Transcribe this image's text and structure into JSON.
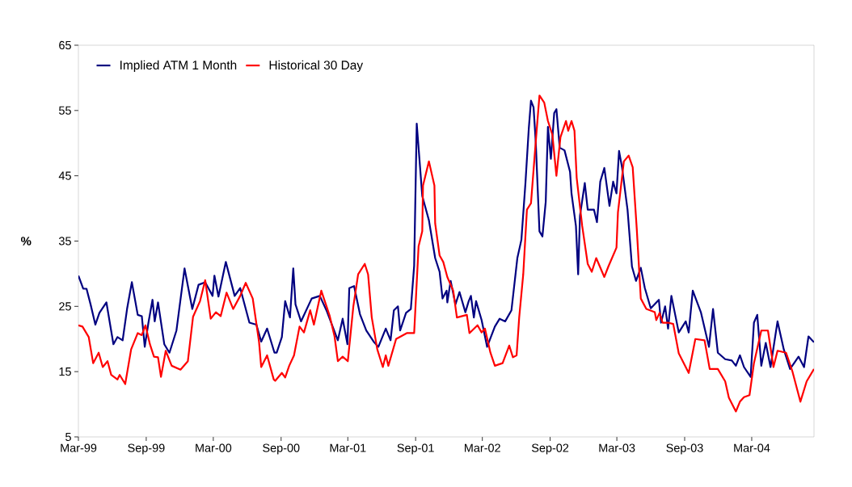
{
  "chart_data": {
    "type": "line",
    "ylabel": "%",
    "xlim": [
      "1999-03-01",
      "2004-08-17"
    ],
    "ylim": [
      5,
      65
    ],
    "xticks": [
      {
        "value": "1999-03-01",
        "label": "Mar-99"
      },
      {
        "value": "1999-09-01",
        "label": "Sep-99"
      },
      {
        "value": "2000-03-01",
        "label": "Mar-00"
      },
      {
        "value": "2000-09-01",
        "label": "Sep-00"
      },
      {
        "value": "2001-03-01",
        "label": "Mar-01"
      },
      {
        "value": "2001-09-01",
        "label": "Sep-01"
      },
      {
        "value": "2002-03-01",
        "label": "Mar-02"
      },
      {
        "value": "2002-09-01",
        "label": "Sep-02"
      },
      {
        "value": "2003-03-01",
        "label": "Mar-03"
      },
      {
        "value": "2003-09-01",
        "label": "Sep-03"
      },
      {
        "value": "2004-03-01",
        "label": "Mar-04"
      }
    ],
    "yticks": [
      5,
      15,
      25,
      35,
      45,
      55,
      65
    ],
    "grid": false,
    "legend": "top left",
    "marker": "none",
    "line_style": "solid",
    "series": [
      {
        "name": "Implied ATM 1 Month",
        "color": "#000080",
        "x": [
          "1999-03-01",
          "1999-03-14",
          "1999-03-23",
          "1999-04-03",
          "1999-04-16",
          "1999-04-27",
          "1999-05-16",
          "1999-06-04",
          "1999-06-15",
          "1999-06-29",
          "1999-07-11",
          "1999-07-24",
          "1999-08-09",
          "1999-08-20",
          "1999-08-28",
          "1999-09-07",
          "1999-09-18",
          "1999-09-24",
          "1999-10-03",
          "1999-10-20",
          "1999-11-03",
          "1999-11-22",
          "1999-12-14",
          "2000-01-04",
          "2000-01-21",
          "2000-02-08",
          "2000-02-28",
          "2000-03-04",
          "2000-03-15",
          "2000-04-04",
          "2000-04-28",
          "2000-05-13",
          "2000-06-07",
          "2000-06-26",
          "2000-07-09",
          "2000-07-25",
          "2000-08-14",
          "2000-08-20",
          "2000-09-03",
          "2000-09-12",
          "2000-09-25",
          "2000-10-04",
          "2000-10-10",
          "2000-10-25",
          "2000-11-23",
          "2000-12-15",
          "2001-01-02",
          "2001-02-02",
          "2001-02-15",
          "2001-02-28",
          "2001-03-05",
          "2001-03-18",
          "2001-04-03",
          "2001-04-20",
          "2001-05-10",
          "2001-05-23",
          "2001-06-12",
          "2001-06-25",
          "2001-07-04",
          "2001-07-15",
          "2001-07-21",
          "2001-08-06",
          "2001-08-19",
          "2001-08-28",
          "2001-09-04",
          "2001-09-19",
          "2001-10-07",
          "2001-10-24",
          "2001-11-05",
          "2001-11-13",
          "2001-11-24",
          "2001-11-26",
          "2001-12-05",
          "2001-12-18",
          "2001-12-29",
          "2002-01-14",
          "2002-01-23",
          "2002-01-29",
          "2002-02-06",
          "2002-02-12",
          "2002-02-27",
          "2002-03-14",
          "2002-04-04",
          "2002-04-17",
          "2002-05-02",
          "2002-05-19",
          "2002-06-04",
          "2002-06-15",
          "2002-06-26",
          "2002-07-05",
          "2002-07-11",
          "2002-07-18",
          "2002-07-24",
          "2002-08-03",
          "2002-08-11",
          "2002-08-20",
          "2002-08-26",
          "2002-09-03",
          "2002-09-12",
          "2002-09-18",
          "2002-09-27",
          "2002-10-10",
          "2002-10-25",
          "2002-10-29",
          "2002-11-10",
          "2002-11-16",
          "2002-11-21",
          "2002-12-04",
          "2002-12-12",
          "2002-12-29",
          "2003-01-06",
          "2003-01-15",
          "2003-01-26",
          "2003-02-09",
          "2003-02-19",
          "2003-02-28",
          "2003-03-07",
          "2003-03-15",
          "2003-03-30",
          "2003-04-11",
          "2003-04-22",
          "2003-05-05",
          "2003-05-16",
          "2003-06-01",
          "2003-06-23",
          "2003-06-29",
          "2003-07-10",
          "2003-07-18",
          "2003-07-27",
          "2003-08-16",
          "2003-09-04",
          "2003-09-12",
          "2003-09-23",
          "2003-10-15",
          "2003-11-06",
          "2003-11-17",
          "2003-11-30",
          "2003-12-20",
          "2004-01-07",
          "2004-01-18",
          "2004-01-29",
          "2004-02-09",
          "2004-02-27",
          "2004-03-07",
          "2004-03-16",
          "2004-03-27",
          "2004-04-08",
          "2004-04-21",
          "2004-05-10",
          "2004-05-27",
          "2004-06-13",
          "2004-07-06",
          "2004-07-21",
          "2004-08-02",
          "2004-08-17"
        ],
        "values": [
          29.7,
          27.7,
          27.7,
          25.3,
          22.2,
          24.0,
          25.6,
          19.2,
          20.3,
          19.8,
          24.6,
          28.7,
          23.7,
          23.5,
          18.8,
          22.5,
          26.0,
          22.7,
          25.6,
          19.2,
          17.9,
          21.3,
          30.8,
          24.6,
          28.3,
          28.7,
          26.6,
          29.7,
          26.5,
          31.8,
          26.6,
          27.8,
          22.5,
          22.2,
          19.6,
          21.6,
          17.9,
          17.9,
          20.3,
          25.8,
          23.3,
          30.8,
          25.3,
          22.7,
          26.2,
          26.6,
          24.4,
          19.8,
          23.1,
          19.2,
          27.8,
          28.1,
          23.8,
          21.3,
          19.6,
          18.8,
          21.6,
          19.8,
          24.4,
          25.0,
          21.3,
          24.0,
          24.6,
          31.2,
          53.0,
          41.9,
          38.2,
          32.4,
          30.3,
          26.2,
          27.4,
          25.6,
          28.9,
          25.3,
          27.2,
          24.1,
          25.8,
          26.6,
          23.3,
          25.8,
          22.9,
          18.8,
          21.9,
          23.1,
          22.7,
          24.4,
          32.4,
          35.2,
          43.9,
          52.2,
          56.5,
          55.5,
          50.1,
          36.5,
          35.7,
          41.0,
          52.5,
          47.6,
          54.6,
          55.2,
          49.3,
          48.9,
          45.6,
          42.3,
          37.3,
          29.9,
          38.9,
          43.9,
          39.8,
          39.8,
          37.9,
          44.1,
          46.2,
          40.4,
          44.1,
          42.3,
          48.8,
          46.3,
          39.8,
          31.1,
          28.9,
          30.9,
          27.8,
          24.7,
          26.0,
          22.5,
          25.0,
          21.6,
          26.6,
          21.0,
          22.7,
          21.0,
          27.4,
          24.1,
          18.8,
          24.6,
          17.9,
          16.9,
          16.7,
          15.9,
          17.5,
          15.7,
          14.2,
          22.5,
          23.7,
          15.9,
          19.4,
          15.7,
          22.7,
          18.4,
          15.4,
          17.3,
          15.7,
          20.4,
          19.5
        ]
      },
      {
        "name": "Historical 30 Day",
        "color": "#ff0000",
        "x": [
          "1999-03-01",
          "1999-03-12",
          "1999-03-29",
          "1999-04-10",
          "1999-04-25",
          "1999-05-06",
          "1999-05-19",
          "1999-05-29",
          "1999-06-15",
          "1999-06-21",
          "1999-07-06",
          "1999-07-22",
          "1999-08-09",
          "1999-08-20",
          "1999-08-30",
          "1999-09-11",
          "1999-09-22",
          "1999-10-03",
          "1999-10-11",
          "1999-10-24",
          "1999-11-09",
          "1999-12-03",
          "1999-12-23",
          "2000-01-06",
          "2000-01-25",
          "2000-02-08",
          "2000-02-23",
          "2000-03-08",
          "2000-03-21",
          "2000-04-06",
          "2000-04-24",
          "2000-05-13",
          "2000-05-28",
          "2000-06-16",
          "2000-07-03",
          "2000-07-09",
          "2000-07-25",
          "2000-08-12",
          "2000-08-16",
          "2000-09-03",
          "2000-09-12",
          "2000-09-23",
          "2000-10-06",
          "2000-10-21",
          "2000-11-02",
          "2000-11-19",
          "2000-11-29",
          "2000-12-19",
          "2001-01-11",
          "2001-01-24",
          "2001-02-02",
          "2001-02-15",
          "2001-03-01",
          "2001-03-16",
          "2001-03-29",
          "2001-04-16",
          "2001-04-25",
          "2001-05-05",
          "2001-05-20",
          "2001-06-04",
          "2001-06-12",
          "2001-06-19",
          "2001-07-10",
          "2001-08-08",
          "2001-08-28",
          "2001-09-09",
          "2001-09-19",
          "2001-09-21",
          "2001-10-07",
          "2001-10-22",
          "2001-10-24",
          "2001-11-05",
          "2001-11-15",
          "2001-11-26",
          "2001-12-12",
          "2001-12-22",
          "2002-01-18",
          "2002-01-25",
          "2002-02-16",
          "2002-02-27",
          "2002-03-08",
          "2002-03-23",
          "2002-04-04",
          "2002-04-25",
          "2002-05-13",
          "2002-05-23",
          "2002-06-02",
          "2002-06-09",
          "2002-06-20",
          "2002-06-30",
          "2002-07-11",
          "2002-07-22",
          "2002-08-03",
          "2002-08-16",
          "2002-08-26",
          "2002-09-07",
          "2002-09-18",
          "2002-09-29",
          "2002-10-14",
          "2002-10-20",
          "2002-10-29",
          "2002-11-06",
          "2002-11-12",
          "2002-11-27",
          "2002-12-12",
          "2002-12-23",
          "2003-01-04",
          "2003-01-26",
          "2003-02-06",
          "2003-02-28",
          "2003-03-04",
          "2003-03-20",
          "2003-04-02",
          "2003-04-13",
          "2003-04-24",
          "2003-05-05",
          "2003-05-20",
          "2003-06-12",
          "2003-06-16",
          "2003-06-25",
          "2003-07-03",
          "2003-07-18",
          "2003-08-01",
          "2003-08-16",
          "2003-09-12",
          "2003-09-30",
          "2003-10-25",
          "2003-11-08",
          "2003-11-30",
          "2003-12-20",
          "2003-12-30",
          "2004-01-18",
          "2004-01-29",
          "2004-02-09",
          "2004-02-24",
          "2004-03-07",
          "2004-03-27",
          "2004-04-14",
          "2004-04-29",
          "2004-05-10",
          "2004-06-02",
          "2004-06-19",
          "2004-07-11",
          "2004-07-28",
          "2004-08-17"
        ],
        "values": [
          22.1,
          21.9,
          20.3,
          16.3,
          17.9,
          15.7,
          16.6,
          14.5,
          13.8,
          14.5,
          13.1,
          18.4,
          20.9,
          20.6,
          22.1,
          19.2,
          17.3,
          17.2,
          14.2,
          18.2,
          15.9,
          15.3,
          16.6,
          23.4,
          25.8,
          29.0,
          23.1,
          24.1,
          23.5,
          27.1,
          24.6,
          26.6,
          28.6,
          26.2,
          19.6,
          15.7,
          17.5,
          13.8,
          13.6,
          14.8,
          14.1,
          15.9,
          17.5,
          21.9,
          21.0,
          24.4,
          22.2,
          27.4,
          23.5,
          20.4,
          16.6,
          17.3,
          16.6,
          25.0,
          29.9,
          31.5,
          29.9,
          23.3,
          18.4,
          15.7,
          17.5,
          15.9,
          20.0,
          20.9,
          20.9,
          34.2,
          36.5,
          43.5,
          47.2,
          43.5,
          37.7,
          32.8,
          31.8,
          29.5,
          27.4,
          23.3,
          23.7,
          20.9,
          22.1,
          21.0,
          21.6,
          17.9,
          15.9,
          16.3,
          19.0,
          17.2,
          17.5,
          23.3,
          29.9,
          39.8,
          40.8,
          48.8,
          57.3,
          56.2,
          53.4,
          51.3,
          45.0,
          50.9,
          53.4,
          51.9,
          53.4,
          51.9,
          44.7,
          37.3,
          31.5,
          30.3,
          32.4,
          29.5,
          31.1,
          34.0,
          39.4,
          47.2,
          48.1,
          46.3,
          36.9,
          26.2,
          24.6,
          24.1,
          22.9,
          24.0,
          22.5,
          22.5,
          22.3,
          17.8,
          14.8,
          20.0,
          19.8,
          15.4,
          15.4,
          13.5,
          11.0,
          8.9,
          10.4,
          11.1,
          11.4,
          16.3,
          21.3,
          21.3,
          15.7,
          18.2,
          17.9,
          15.1,
          10.4,
          13.5,
          15.4
        ]
      }
    ]
  }
}
